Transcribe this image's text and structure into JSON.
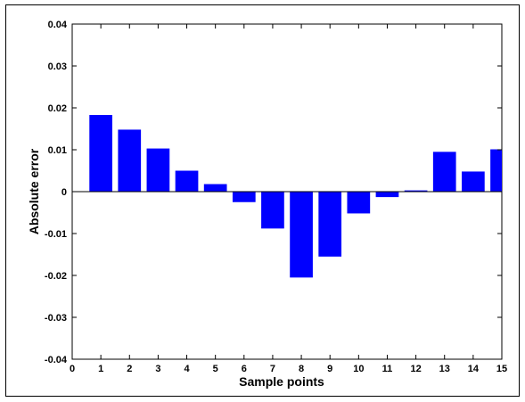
{
  "chart_data": {
    "type": "bar",
    "title": "",
    "xlabel": "Sample points",
    "ylabel": "Absolute error",
    "categories": [
      1,
      2,
      3,
      4,
      5,
      6,
      7,
      8,
      9,
      10,
      11,
      12,
      13,
      14,
      15
    ],
    "values": [
      0.0183,
      0.0148,
      0.0103,
      0.005,
      0.0018,
      -0.0025,
      -0.0088,
      -0.0205,
      -0.0155,
      -0.0052,
      -0.0013,
      0.0003,
      0.0095,
      0.0048,
      0.0101
    ],
    "xlim": [
      0,
      15
    ],
    "ylim": [
      -0.04,
      0.04
    ],
    "xticks": [
      "0",
      "1",
      "2",
      "3",
      "4",
      "5",
      "6",
      "7",
      "8",
      "9",
      "10",
      "11",
      "12",
      "13",
      "14",
      "15"
    ],
    "yticks": [
      "-0.04",
      "-0.03",
      "-0.02",
      "-0.01",
      "0",
      "0.01",
      "0.02",
      "0.03",
      "0.04"
    ],
    "grid": false,
    "legend": "none",
    "bar_color": "#0000ff",
    "axis_color": "#000000"
  }
}
